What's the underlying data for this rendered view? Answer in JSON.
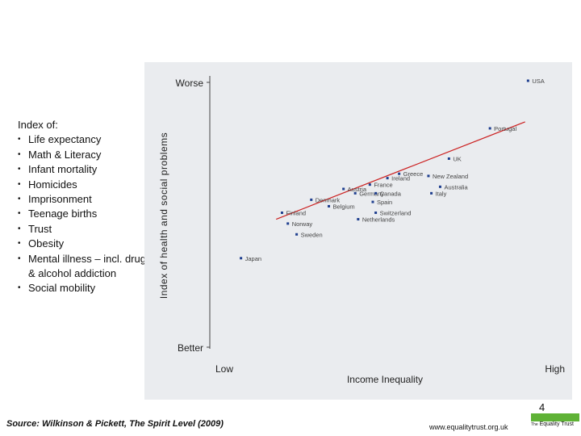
{
  "index": {
    "heading": "Index of:",
    "items": [
      "Life expectancy",
      "Math & Literacy",
      "Infant mortality",
      "Homicides",
      "Imprisonment",
      "Teenage births",
      "Trust",
      "Obesity",
      "Mental illness – incl. drug & alcohol addiction",
      "Social mobility"
    ]
  },
  "chart_data": {
    "type": "scatter",
    "title": "",
    "xlabel": "Income Inequality",
    "ylabel": "Index of health and social problems",
    "x_tick_labels": {
      "low": "Low",
      "high": "High"
    },
    "y_tick_labels": {
      "top": "Worse",
      "bottom": "Better"
    },
    "xlim": [
      0,
      100
    ],
    "ylim": [
      0,
      100
    ],
    "points": [
      {
        "label": "USA",
        "x": 99,
        "y": 100
      },
      {
        "label": "Portugal",
        "x": 86,
        "y": 78
      },
      {
        "label": "UK",
        "x": 72,
        "y": 64
      },
      {
        "label": "New Zealand",
        "x": 65,
        "y": 56
      },
      {
        "label": "Greece",
        "x": 55,
        "y": 57
      },
      {
        "label": "Ireland",
        "x": 51,
        "y": 55
      },
      {
        "label": "Australia",
        "x": 69,
        "y": 51
      },
      {
        "label": "Italy",
        "x": 66,
        "y": 48
      },
      {
        "label": "France",
        "x": 45,
        "y": 52
      },
      {
        "label": "Austria",
        "x": 36,
        "y": 50
      },
      {
        "label": "Germany",
        "x": 40,
        "y": 48
      },
      {
        "label": "Canada",
        "x": 47,
        "y": 48
      },
      {
        "label": "Denmark",
        "x": 25,
        "y": 45
      },
      {
        "label": "Spain",
        "x": 46,
        "y": 44
      },
      {
        "label": "Belgium",
        "x": 31,
        "y": 42
      },
      {
        "label": "Switzerland",
        "x": 47,
        "y": 39
      },
      {
        "label": "Finland",
        "x": 15,
        "y": 39
      },
      {
        "label": "Netherlands",
        "x": 41,
        "y": 36
      },
      {
        "label": "Norway",
        "x": 17,
        "y": 34
      },
      {
        "label": "Sweden",
        "x": 20,
        "y": 29
      },
      {
        "label": "Japan",
        "x": 1,
        "y": 18
      }
    ],
    "trendline": {
      "x1": 13,
      "y1": 36,
      "x2": 98,
      "y2": 81
    },
    "grid": false,
    "legend": "none"
  },
  "footer": {
    "page_number": "4",
    "source": "Source: Wilkinson & Pickett, The Spirit Level (2009)",
    "website": "www.equalitytrust.org.uk",
    "logo_the": "The",
    "logo_name": "Equality Trust"
  },
  "colors": {
    "panel_bg": "#eaecef",
    "trendline": "#cc2222",
    "points": "#1f3f8f",
    "logo_green": "#5fb236"
  }
}
